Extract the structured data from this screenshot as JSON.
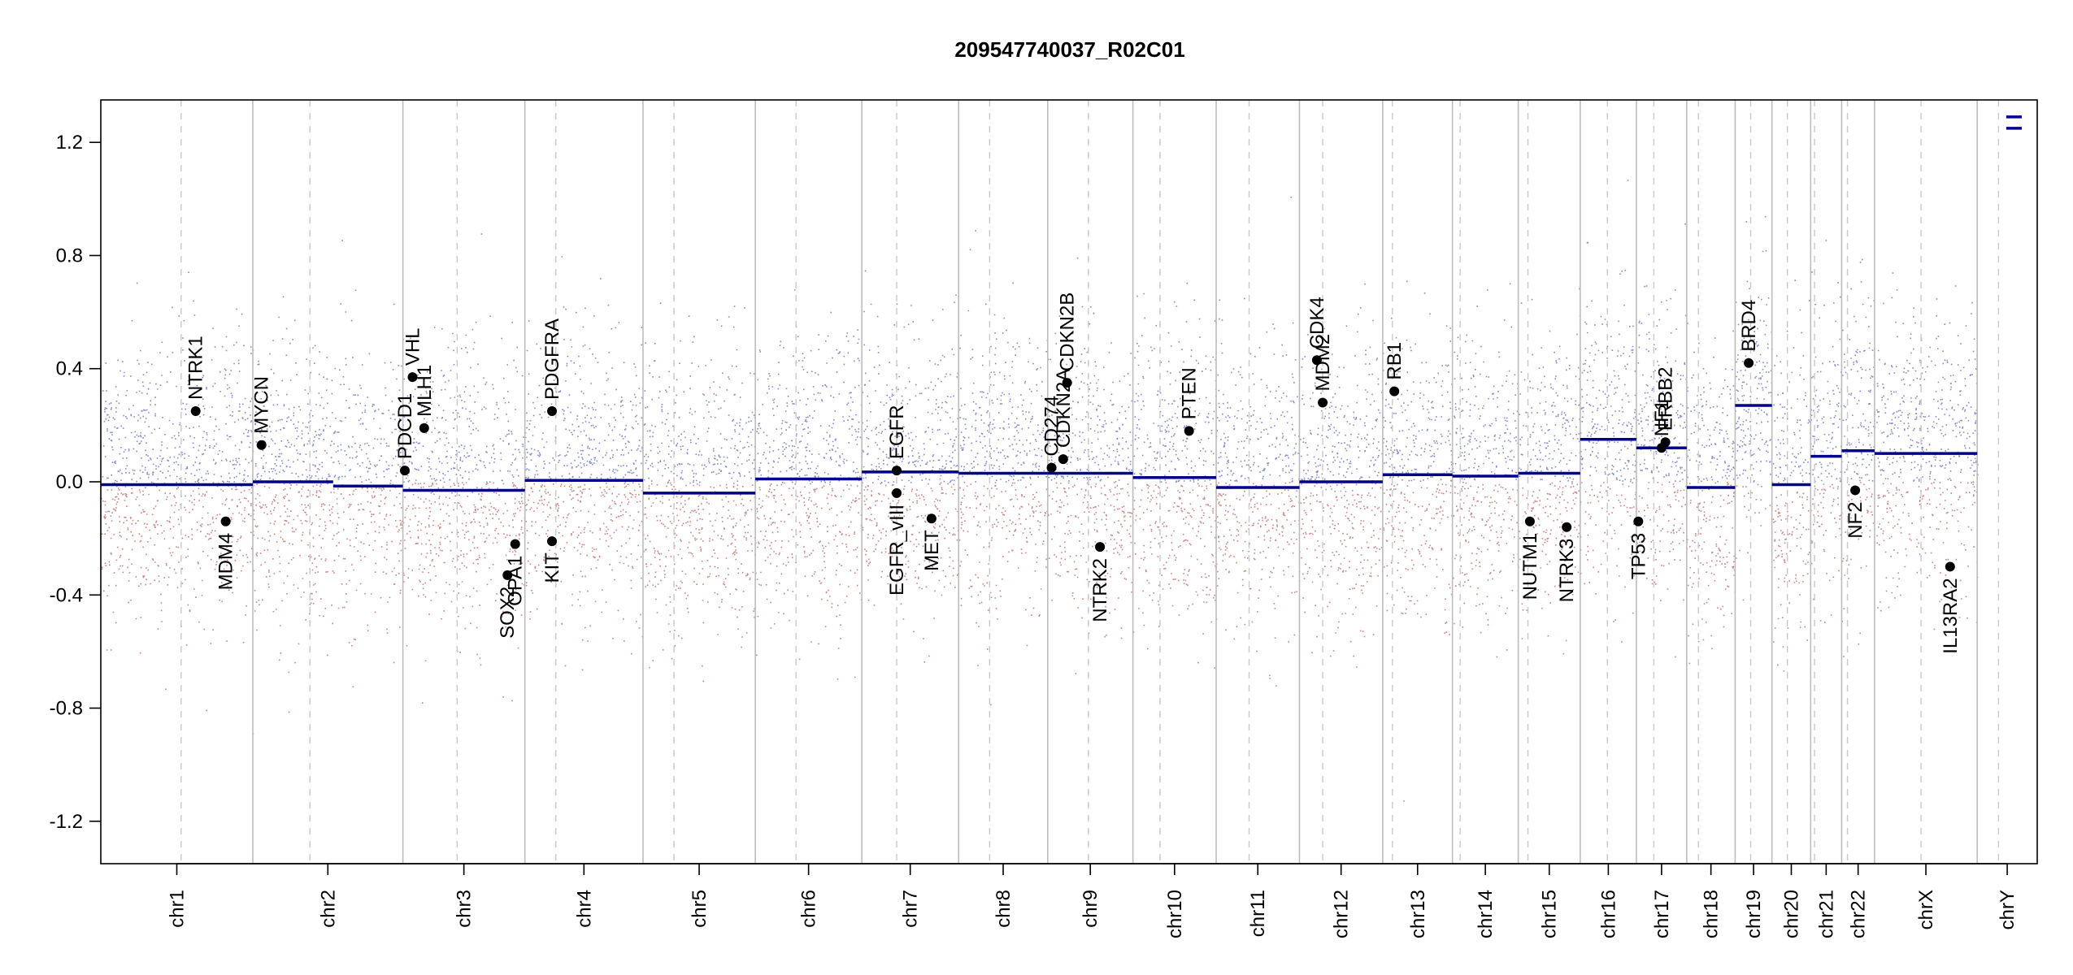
{
  "chart_data": {
    "type": "scatter",
    "title": "209547740037_R02C01",
    "xlabel": "",
    "ylabel": "",
    "ylim": [
      -1.35,
      1.35
    ],
    "yticks": [
      -1.2,
      -0.8,
      -0.4,
      0.0,
      0.4,
      0.8,
      1.2
    ],
    "grid": false,
    "colors": {
      "gain_points": "#1f2d9a",
      "loss_points": "#9a2323",
      "segments": "#00008b",
      "chrom_border": "#bdbdbd",
      "centromere": "#c9c9c9",
      "gene_marker": "#000000"
    },
    "x_unit": "position along genome (chr1..chrY, fractional chromosome offset)",
    "chromosomes": [
      {
        "name": "chr1",
        "start": 0.0,
        "end": 0.0785,
        "centromere": 0.0415
      },
      {
        "name": "chr2",
        "start": 0.0785,
        "end": 0.156,
        "centromere": 0.108
      },
      {
        "name": "chr3",
        "start": 0.156,
        "end": 0.219,
        "centromere": 0.184
      },
      {
        "name": "chr4",
        "start": 0.219,
        "end": 0.28,
        "centromere": 0.235
      },
      {
        "name": "chr5",
        "start": 0.28,
        "end": 0.338,
        "centromere": 0.296
      },
      {
        "name": "chr6",
        "start": 0.338,
        "end": 0.393,
        "centromere": 0.359
      },
      {
        "name": "chr7",
        "start": 0.393,
        "end": 0.443,
        "centromere": 0.411
      },
      {
        "name": "chr8",
        "start": 0.443,
        "end": 0.489,
        "centromere": 0.459
      },
      {
        "name": "chr9",
        "start": 0.489,
        "end": 0.533,
        "centromere": 0.51
      },
      {
        "name": "chr10",
        "start": 0.533,
        "end": 0.576,
        "centromere": 0.547
      },
      {
        "name": "chr11",
        "start": 0.576,
        "end": 0.619,
        "centromere": 0.593
      },
      {
        "name": "chr12",
        "start": 0.619,
        "end": 0.662,
        "centromere": 0.631
      },
      {
        "name": "chr13",
        "start": 0.662,
        "end": 0.698,
        "centromere": 0.667
      },
      {
        "name": "chr14",
        "start": 0.698,
        "end": 0.732,
        "centromere": 0.702
      },
      {
        "name": "chr15",
        "start": 0.732,
        "end": 0.764,
        "centromere": 0.737
      },
      {
        "name": "chr16",
        "start": 0.764,
        "end": 0.793,
        "centromere": 0.778
      },
      {
        "name": "chr17",
        "start": 0.793,
        "end": 0.819,
        "centromere": 0.802
      },
      {
        "name": "chr18",
        "start": 0.819,
        "end": 0.844,
        "centromere": 0.825
      },
      {
        "name": "chr19",
        "start": 0.844,
        "end": 0.863,
        "centromere": 0.852
      },
      {
        "name": "chr20",
        "start": 0.863,
        "end": 0.883,
        "centromere": 0.871
      },
      {
        "name": "chr21",
        "start": 0.883,
        "end": 0.899,
        "centromere": 0.885
      },
      {
        "name": "chr22",
        "start": 0.899,
        "end": 0.916,
        "centromere": 0.902
      },
      {
        "name": "chrX",
        "start": 0.916,
        "end": 0.969,
        "centromere": 0.94
      },
      {
        "name": "chrY",
        "start": 0.969,
        "end": 1.0,
        "centromere": 0.98
      }
    ],
    "segments": [
      {
        "x0": 0.0,
        "x1": 0.0785,
        "y": -0.01
      },
      {
        "x0": 0.0785,
        "x1": 0.12,
        "y": 0.0
      },
      {
        "x0": 0.12,
        "x1": 0.156,
        "y": -0.015
      },
      {
        "x0": 0.156,
        "x1": 0.219,
        "y": -0.03
      },
      {
        "x0": 0.219,
        "x1": 0.28,
        "y": 0.005
      },
      {
        "x0": 0.28,
        "x1": 0.338,
        "y": -0.04
      },
      {
        "x0": 0.338,
        "x1": 0.393,
        "y": 0.01
      },
      {
        "x0": 0.393,
        "x1": 0.443,
        "y": 0.035
      },
      {
        "x0": 0.443,
        "x1": 0.489,
        "y": 0.03
      },
      {
        "x0": 0.489,
        "x1": 0.533,
        "y": 0.03
      },
      {
        "x0": 0.533,
        "x1": 0.576,
        "y": 0.015
      },
      {
        "x0": 0.576,
        "x1": 0.619,
        "y": -0.02
      },
      {
        "x0": 0.619,
        "x1": 0.662,
        "y": 0.0
      },
      {
        "x0": 0.662,
        "x1": 0.698,
        "y": 0.025
      },
      {
        "x0": 0.698,
        "x1": 0.732,
        "y": 0.02
      },
      {
        "x0": 0.732,
        "x1": 0.764,
        "y": 0.03
      },
      {
        "x0": 0.764,
        "x1": 0.793,
        "y": 0.15
      },
      {
        "x0": 0.793,
        "x1": 0.819,
        "y": 0.12
      },
      {
        "x0": 0.819,
        "x1": 0.844,
        "y": -0.02
      },
      {
        "x0": 0.844,
        "x1": 0.863,
        "y": 0.27
      },
      {
        "x0": 0.863,
        "x1": 0.883,
        "y": -0.01
      },
      {
        "x0": 0.883,
        "x1": 0.899,
        "y": 0.09
      },
      {
        "x0": 0.899,
        "x1": 0.916,
        "y": 0.11
      },
      {
        "x0": 0.916,
        "x1": 0.969,
        "y": 0.1
      },
      {
        "x0": 0.984,
        "x1": 0.992,
        "y": 1.29
      },
      {
        "x0": 0.984,
        "x1": 0.992,
        "y": 1.25
      }
    ],
    "genes": [
      {
        "name": "NTRK1",
        "x": 0.049,
        "y": 0.25,
        "label_side": "above"
      },
      {
        "name": "MDM4",
        "x": 0.0645,
        "y": -0.14,
        "label_side": "below"
      },
      {
        "name": "MYCN",
        "x": 0.083,
        "y": 0.13,
        "label_side": "above"
      },
      {
        "name": "PDCD1",
        "x": 0.157,
        "y": 0.04,
        "label_side": "above"
      },
      {
        "name": "VHL",
        "x": 0.161,
        "y": 0.37,
        "label_side": "above"
      },
      {
        "name": "MLH1",
        "x": 0.167,
        "y": 0.19,
        "label_side": "above"
      },
      {
        "name": "SOX2",
        "x": 0.21,
        "y": -0.33,
        "label_side": "below"
      },
      {
        "name": "OPA1",
        "x": 0.214,
        "y": -0.22,
        "label_side": "below"
      },
      {
        "name": "PDGFRA",
        "x": 0.233,
        "y": 0.25,
        "label_side": "above"
      },
      {
        "name": "KIT",
        "x": 0.233,
        "y": -0.21,
        "label_side": "below"
      },
      {
        "name": "EGFR",
        "x": 0.411,
        "y": 0.04,
        "label_side": "above"
      },
      {
        "name": "EGFR_vIII",
        "x": 0.411,
        "y": -0.04,
        "label_side": "below"
      },
      {
        "name": "MET",
        "x": 0.429,
        "y": -0.13,
        "label_side": "below"
      },
      {
        "name": "CD274",
        "x": 0.491,
        "y": 0.05,
        "label_side": "above"
      },
      {
        "name": "CDKN2A",
        "x": 0.497,
        "y": 0.08,
        "label_side": "above"
      },
      {
        "name": "CDKN2B",
        "x": 0.499,
        "y": 0.35,
        "label_side": "above"
      },
      {
        "name": "NTRK2",
        "x": 0.516,
        "y": -0.23,
        "label_side": "below"
      },
      {
        "name": "PTEN",
        "x": 0.562,
        "y": 0.18,
        "label_side": "above"
      },
      {
        "name": "CDK4",
        "x": 0.628,
        "y": 0.43,
        "label_side": "above"
      },
      {
        "name": "MDM2",
        "x": 0.631,
        "y": 0.28,
        "label_side": "above"
      },
      {
        "name": "RB1",
        "x": 0.668,
        "y": 0.32,
        "label_side": "above"
      },
      {
        "name": "NUTM1",
        "x": 0.738,
        "y": -0.14,
        "label_side": "below"
      },
      {
        "name": "NTRK3",
        "x": 0.757,
        "y": -0.16,
        "label_side": "below"
      },
      {
        "name": "TP53",
        "x": 0.794,
        "y": -0.14,
        "label_side": "below"
      },
      {
        "name": "NF1",
        "x": 0.806,
        "y": 0.12,
        "label_side": "above"
      },
      {
        "name": "ERBB2",
        "x": 0.808,
        "y": 0.14,
        "label_side": "above"
      },
      {
        "name": "BRD4",
        "x": 0.851,
        "y": 0.42,
        "label_side": "above"
      },
      {
        "name": "NF2",
        "x": 0.906,
        "y": -0.03,
        "label_side": "below"
      },
      {
        "name": "IL13RA2",
        "x": 0.955,
        "y": -0.3,
        "label_side": "below"
      }
    ]
  }
}
